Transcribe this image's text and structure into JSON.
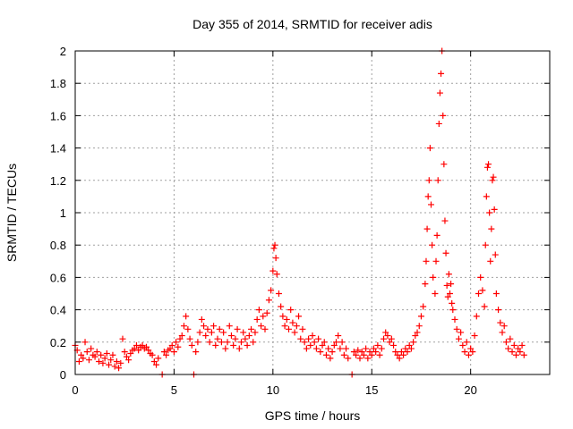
{
  "chart_data": {
    "type": "scatter",
    "title": "Day 355 of 2014, SRMTID for receiver adis",
    "xlabel": "GPS time / hours",
    "ylabel": "SRMTID / TECUs",
    "xlim": [
      0,
      24
    ],
    "ylim": [
      0,
      2
    ],
    "xticks": [
      0,
      5,
      10,
      15,
      20
    ],
    "xtick_labels": [
      "0",
      "5",
      "10",
      "15",
      "20"
    ],
    "yticks": [
      0,
      0.2,
      0.4,
      0.6,
      0.8,
      1,
      1.2,
      1.4,
      1.6,
      1.8,
      2
    ],
    "ytick_labels": [
      "0",
      "0.2",
      "0.4",
      "0.6",
      "0.8",
      "1",
      "1.2",
      "1.4",
      "1.6",
      "1.8",
      "2"
    ],
    "grid": true,
    "series": [
      {
        "name": "SRMTID",
        "color": "#ff0000",
        "marker": "plus",
        "points": [
          [
            0.0,
            0.18
          ],
          [
            0.1,
            0.15
          ],
          [
            0.2,
            0.08
          ],
          [
            0.3,
            0.12
          ],
          [
            0.4,
            0.1
          ],
          [
            0.5,
            0.2
          ],
          [
            0.6,
            0.14
          ],
          [
            0.7,
            0.09
          ],
          [
            0.8,
            0.16
          ],
          [
            0.9,
            0.12
          ],
          [
            1.0,
            0.11
          ],
          [
            1.1,
            0.14
          ],
          [
            1.2,
            0.08
          ],
          [
            1.3,
            0.12
          ],
          [
            1.4,
            0.07
          ],
          [
            1.5,
            0.1
          ],
          [
            1.6,
            0.13
          ],
          [
            1.7,
            0.06
          ],
          [
            1.8,
            0.09
          ],
          [
            1.9,
            0.12
          ],
          [
            2.0,
            0.05
          ],
          [
            2.1,
            0.08
          ],
          [
            2.2,
            0.04
          ],
          [
            2.3,
            0.07
          ],
          [
            2.4,
            0.22
          ],
          [
            2.5,
            0.14
          ],
          [
            2.6,
            0.11
          ],
          [
            2.7,
            0.09
          ],
          [
            2.8,
            0.13
          ],
          [
            2.9,
            0.15
          ],
          [
            3.0,
            0.16
          ],
          [
            3.1,
            0.18
          ],
          [
            3.2,
            0.15
          ],
          [
            3.3,
            0.17
          ],
          [
            3.4,
            0.18
          ],
          [
            3.5,
            0.16
          ],
          [
            3.6,
            0.17
          ],
          [
            3.7,
            0.15
          ],
          [
            3.8,
            0.13
          ],
          [
            3.9,
            0.12
          ],
          [
            4.0,
            0.08
          ],
          [
            4.1,
            0.06
          ],
          [
            4.2,
            0.1
          ],
          [
            4.4,
            0.0
          ],
          [
            4.5,
            0.14
          ],
          [
            4.6,
            0.12
          ],
          [
            4.7,
            0.15
          ],
          [
            4.8,
            0.16
          ],
          [
            4.9,
            0.18
          ],
          [
            5.0,
            0.14
          ],
          [
            5.1,
            0.2
          ],
          [
            5.2,
            0.17
          ],
          [
            5.3,
            0.22
          ],
          [
            5.4,
            0.24
          ],
          [
            5.5,
            0.3
          ],
          [
            5.6,
            0.36
          ],
          [
            5.7,
            0.28
          ],
          [
            5.8,
            0.22
          ],
          [
            5.9,
            0.18
          ],
          [
            6.0,
            0.0
          ],
          [
            6.1,
            0.14
          ],
          [
            6.2,
            0.2
          ],
          [
            6.3,
            0.26
          ],
          [
            6.4,
            0.34
          ],
          [
            6.5,
            0.3
          ],
          [
            6.6,
            0.24
          ],
          [
            6.7,
            0.28
          ],
          [
            6.8,
            0.2
          ],
          [
            6.9,
            0.26
          ],
          [
            7.0,
            0.3
          ],
          [
            7.1,
            0.18
          ],
          [
            7.2,
            0.22
          ],
          [
            7.3,
            0.28
          ],
          [
            7.4,
            0.2
          ],
          [
            7.5,
            0.26
          ],
          [
            7.6,
            0.16
          ],
          [
            7.7,
            0.2
          ],
          [
            7.8,
            0.3
          ],
          [
            7.9,
            0.24
          ],
          [
            8.0,
            0.18
          ],
          [
            8.1,
            0.22
          ],
          [
            8.2,
            0.28
          ],
          [
            8.3,
            0.16
          ],
          [
            8.4,
            0.2
          ],
          [
            8.5,
            0.26
          ],
          [
            8.6,
            0.22
          ],
          [
            8.7,
            0.18
          ],
          [
            8.8,
            0.24
          ],
          [
            8.9,
            0.28
          ],
          [
            9.0,
            0.2
          ],
          [
            9.1,
            0.26
          ],
          [
            9.2,
            0.34
          ],
          [
            9.3,
            0.4
          ],
          [
            9.4,
            0.3
          ],
          [
            9.5,
            0.36
          ],
          [
            9.6,
            0.28
          ],
          [
            9.7,
            0.38
          ],
          [
            9.8,
            0.46
          ],
          [
            9.9,
            0.52
          ],
          [
            10.0,
            0.64
          ],
          [
            10.05,
            0.78
          ],
          [
            10.1,
            0.8
          ],
          [
            10.15,
            0.72
          ],
          [
            10.2,
            0.62
          ],
          [
            10.3,
            0.5
          ],
          [
            10.4,
            0.42
          ],
          [
            10.5,
            0.36
          ],
          [
            10.6,
            0.3
          ],
          [
            10.7,
            0.34
          ],
          [
            10.8,
            0.28
          ],
          [
            10.9,
            0.4
          ],
          [
            11.0,
            0.32
          ],
          [
            11.1,
            0.26
          ],
          [
            11.2,
            0.3
          ],
          [
            11.3,
            0.36
          ],
          [
            11.4,
            0.22
          ],
          [
            11.5,
            0.28
          ],
          [
            11.6,
            0.2
          ],
          [
            11.7,
            0.16
          ],
          [
            11.8,
            0.22
          ],
          [
            11.9,
            0.18
          ],
          [
            12.0,
            0.24
          ],
          [
            12.1,
            0.2
          ],
          [
            12.2,
            0.16
          ],
          [
            12.3,
            0.22
          ],
          [
            12.4,
            0.14
          ],
          [
            12.5,
            0.18
          ],
          [
            12.6,
            0.2
          ],
          [
            12.7,
            0.12
          ],
          [
            12.8,
            0.16
          ],
          [
            12.9,
            0.1
          ],
          [
            13.0,
            0.14
          ],
          [
            13.1,
            0.18
          ],
          [
            13.2,
            0.2
          ],
          [
            13.3,
            0.24
          ],
          [
            13.4,
            0.16
          ],
          [
            13.5,
            0.2
          ],
          [
            13.6,
            0.12
          ],
          [
            13.7,
            0.16
          ],
          [
            13.8,
            0.1
          ],
          [
            14.0,
            0.0
          ],
          [
            14.1,
            0.14
          ],
          [
            14.2,
            0.12
          ],
          [
            14.3,
            0.15
          ],
          [
            14.4,
            0.1
          ],
          [
            14.5,
            0.14
          ],
          [
            14.6,
            0.12
          ],
          [
            14.7,
            0.16
          ],
          [
            14.8,
            0.1
          ],
          [
            14.9,
            0.14
          ],
          [
            15.0,
            0.12
          ],
          [
            15.1,
            0.16
          ],
          [
            15.2,
            0.14
          ],
          [
            15.3,
            0.18
          ],
          [
            15.4,
            0.12
          ],
          [
            15.5,
            0.16
          ],
          [
            15.6,
            0.22
          ],
          [
            15.7,
            0.26
          ],
          [
            15.8,
            0.24
          ],
          [
            15.9,
            0.2
          ],
          [
            16.0,
            0.22
          ],
          [
            16.1,
            0.18
          ],
          [
            16.2,
            0.14
          ],
          [
            16.3,
            0.12
          ],
          [
            16.4,
            0.1
          ],
          [
            16.5,
            0.14
          ],
          [
            16.6,
            0.12
          ],
          [
            16.7,
            0.16
          ],
          [
            16.8,
            0.14
          ],
          [
            16.9,
            0.18
          ],
          [
            17.0,
            0.16
          ],
          [
            17.1,
            0.2
          ],
          [
            17.2,
            0.24
          ],
          [
            17.3,
            0.26
          ],
          [
            17.4,
            0.3
          ],
          [
            17.5,
            0.36
          ],
          [
            17.6,
            0.42
          ],
          [
            17.7,
            0.56
          ],
          [
            17.75,
            0.7
          ],
          [
            17.8,
            0.9
          ],
          [
            17.85,
            1.1
          ],
          [
            17.9,
            1.2
          ],
          [
            17.95,
            1.4
          ],
          [
            18.0,
            1.05
          ],
          [
            18.05,
            0.8
          ],
          [
            18.1,
            0.6
          ],
          [
            18.2,
            0.5
          ],
          [
            18.25,
            0.7
          ],
          [
            18.3,
            0.86
          ],
          [
            18.35,
            1.2
          ],
          [
            18.4,
            1.55
          ],
          [
            18.45,
            1.74
          ],
          [
            18.5,
            1.86
          ],
          [
            18.55,
            2.0
          ],
          [
            18.6,
            1.6
          ],
          [
            18.65,
            1.3
          ],
          [
            18.7,
            0.95
          ],
          [
            18.75,
            0.75
          ],
          [
            18.8,
            0.55
          ],
          [
            18.85,
            0.48
          ],
          [
            18.9,
            0.62
          ],
          [
            18.95,
            0.5
          ],
          [
            19.0,
            0.56
          ],
          [
            19.05,
            0.44
          ],
          [
            19.1,
            0.4
          ],
          [
            19.2,
            0.34
          ],
          [
            19.3,
            0.28
          ],
          [
            19.4,
            0.22
          ],
          [
            19.5,
            0.26
          ],
          [
            19.6,
            0.18
          ],
          [
            19.7,
            0.14
          ],
          [
            19.8,
            0.2
          ],
          [
            19.9,
            0.12
          ],
          [
            20.0,
            0.16
          ],
          [
            20.1,
            0.14
          ],
          [
            20.2,
            0.24
          ],
          [
            20.3,
            0.36
          ],
          [
            20.4,
            0.5
          ],
          [
            20.5,
            0.6
          ],
          [
            20.6,
            0.52
          ],
          [
            20.7,
            0.42
          ],
          [
            20.75,
            0.8
          ],
          [
            20.8,
            1.1
          ],
          [
            20.85,
            1.28
          ],
          [
            20.9,
            1.3
          ],
          [
            20.95,
            1.0
          ],
          [
            21.0,
            0.7
          ],
          [
            21.05,
            0.9
          ],
          [
            21.1,
            1.2
          ],
          [
            21.15,
            1.22
          ],
          [
            21.2,
            1.02
          ],
          [
            21.25,
            0.74
          ],
          [
            21.3,
            0.5
          ],
          [
            21.4,
            0.4
          ],
          [
            21.5,
            0.32
          ],
          [
            21.6,
            0.26
          ],
          [
            21.7,
            0.3
          ],
          [
            21.8,
            0.2
          ],
          [
            21.9,
            0.16
          ],
          [
            22.0,
            0.22
          ],
          [
            22.1,
            0.14
          ],
          [
            22.2,
            0.18
          ],
          [
            22.3,
            0.12
          ],
          [
            22.4,
            0.16
          ],
          [
            22.5,
            0.14
          ],
          [
            22.6,
            0.18
          ],
          [
            22.7,
            0.12
          ]
        ]
      }
    ]
  }
}
